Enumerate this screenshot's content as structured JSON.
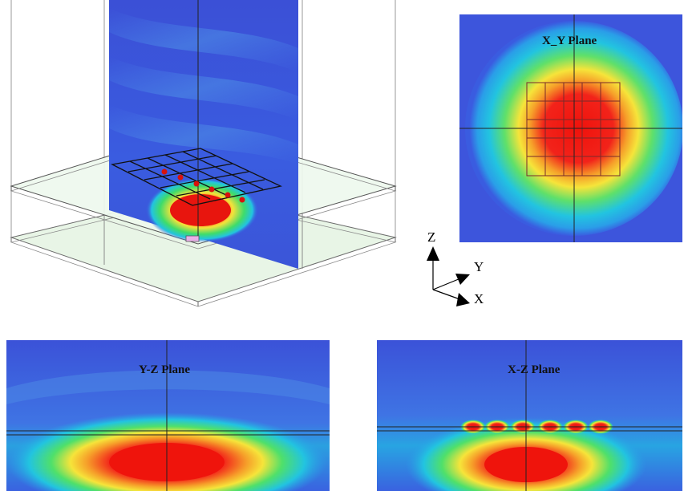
{
  "planes": {
    "xy": {
      "title": "X_Y Plane"
    },
    "yz": {
      "title": "Y-Z Plane"
    },
    "xz": {
      "title": "X-Z Plane"
    }
  },
  "axes": {
    "z": "Z",
    "y": "Y",
    "x": "X"
  },
  "colors": {
    "cold": "#3a55e8",
    "cool": "#22c4e0",
    "mid": "#4fe06a",
    "warm": "#f6e43a",
    "hot": "#f2231a",
    "substrate": "#eef8ee"
  }
}
